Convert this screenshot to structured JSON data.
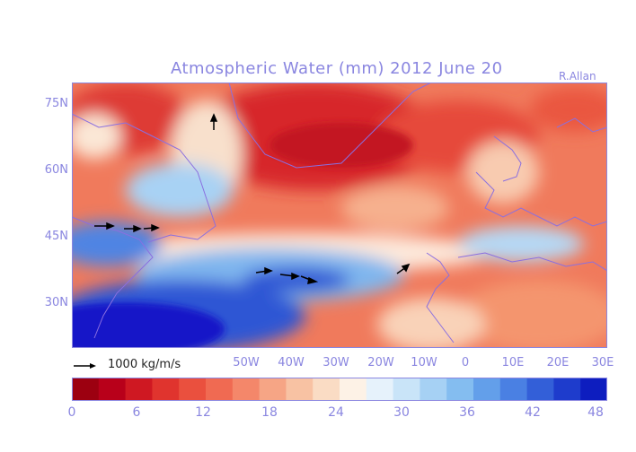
{
  "title": "Atmospheric Water (mm) 2012 June 20",
  "credit": "R.Allan",
  "lat_labels": [
    "75N",
    "60N",
    "45N",
    "30N"
  ],
  "lon_labels": [
    "50W",
    "40W",
    "30W",
    "20W",
    "10W",
    "0",
    "10E",
    "20E",
    "30E"
  ],
  "vector_legend": "1000 kg/m/s",
  "colorbar": {
    "ticks": [
      "0",
      "6",
      "12",
      "18",
      "24",
      "30",
      "36",
      "42",
      "48"
    ],
    "colors": [
      "#9c0010",
      "#b8001a",
      "#cf1822",
      "#e0342e",
      "#ea503e",
      "#f06a52",
      "#f4876a",
      "#f6a585",
      "#f8c2a3",
      "#fadcc4",
      "#fdf2e6",
      "#e6f2fb",
      "#c9e4f8",
      "#a6d1f4",
      "#84bdf0",
      "#639fea",
      "#4a80e3",
      "#335fd8",
      "#1e3ccc",
      "#0d1dbf"
    ]
  },
  "chart_data": {
    "type": "heatmap",
    "title": "Atmospheric Water (mm) 2012 June 20",
    "xlabel": "",
    "ylabel": "",
    "colorbar_range": [
      0,
      48
    ],
    "lat_ticks": [
      75,
      60,
      45,
      30
    ],
    "lon_ticks": [
      -50,
      -40,
      -30,
      -20,
      -10,
      0,
      10,
      20,
      30
    ]
  }
}
